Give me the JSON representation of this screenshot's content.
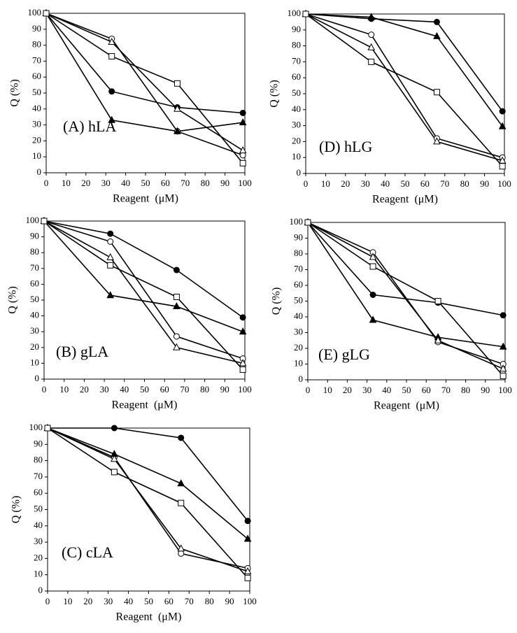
{
  "chart_data": [
    {
      "type": "line",
      "label": "(A) hLA",
      "x_label": "Reagent  (μM)",
      "y_label": "Q (%)",
      "x": [
        0,
        33,
        66,
        99
      ],
      "xlim": [
        0,
        100
      ],
      "ylim": [
        0,
        100
      ],
      "xticks": [
        0,
        10,
        20,
        30,
        40,
        50,
        60,
        70,
        80,
        90,
        100
      ],
      "yticks": [
        0,
        10,
        20,
        30,
        40,
        50,
        60,
        70,
        80,
        90,
        100
      ],
      "series": [
        {
          "marker": "circle",
          "filled": true,
          "color": "#000000",
          "values": [
            100,
            51,
            41,
            37.5
          ]
        },
        {
          "marker": "circle",
          "filled": false,
          "color": "#000000",
          "values": [
            100,
            84,
            26,
            11
          ]
        },
        {
          "marker": "triangle",
          "filled": true,
          "color": "#000000",
          "values": [
            100,
            33,
            26,
            31.5
          ]
        },
        {
          "marker": "triangle",
          "filled": false,
          "color": "#000000",
          "values": [
            100,
            82,
            40,
            14
          ]
        },
        {
          "marker": "square",
          "filled": false,
          "color": "#000000",
          "values": [
            100,
            73,
            56,
            6
          ]
        }
      ]
    },
    {
      "type": "line",
      "label": "(D) hLG",
      "x_label": "Reagent  (μM)",
      "y_label": "Q (%)",
      "x": [
        0,
        33,
        66,
        99
      ],
      "xlim": [
        0,
        100
      ],
      "ylim": [
        0,
        100
      ],
      "xticks": [
        0,
        10,
        20,
        30,
        40,
        50,
        60,
        70,
        80,
        90,
        100
      ],
      "yticks": [
        0,
        10,
        20,
        30,
        40,
        50,
        60,
        70,
        80,
        90,
        100
      ],
      "series": [
        {
          "marker": "circle",
          "filled": true,
          "color": "#000000",
          "values": [
            100,
            97,
            95,
            39
          ]
        },
        {
          "marker": "circle",
          "filled": false,
          "color": "#000000",
          "values": [
            100,
            87,
            22,
            10
          ]
        },
        {
          "marker": "triangle",
          "filled": true,
          "color": "#000000",
          "values": [
            100,
            98,
            86,
            29.5
          ]
        },
        {
          "marker": "triangle",
          "filled": false,
          "color": "#000000",
          "values": [
            100,
            79,
            20,
            8
          ]
        },
        {
          "marker": "square",
          "filled": false,
          "color": "#000000",
          "values": [
            100,
            70,
            51,
            4.5
          ]
        }
      ]
    },
    {
      "type": "line",
      "label": "(B) gLA",
      "x_label": "Reagent  (μM)",
      "y_label": "Q (%)",
      "x": [
        0,
        33,
        66,
        99
      ],
      "xlim": [
        0,
        100
      ],
      "ylim": [
        0,
        100
      ],
      "xticks": [
        0,
        10,
        20,
        30,
        40,
        50,
        60,
        70,
        80,
        90,
        100
      ],
      "yticks": [
        0,
        10,
        20,
        30,
        40,
        50,
        60,
        70,
        80,
        90,
        100
      ],
      "series": [
        {
          "marker": "circle",
          "filled": true,
          "color": "#000000",
          "values": [
            100,
            92,
            69,
            39
          ]
        },
        {
          "marker": "circle",
          "filled": false,
          "color": "#000000",
          "values": [
            100,
            87,
            27,
            13
          ]
        },
        {
          "marker": "triangle",
          "filled": true,
          "color": "#000000",
          "values": [
            100,
            53,
            46,
            30
          ]
        },
        {
          "marker": "triangle",
          "filled": false,
          "color": "#000000",
          "values": [
            100,
            77,
            20,
            10
          ]
        },
        {
          "marker": "square",
          "filled": false,
          "color": "#000000",
          "values": [
            100,
            72,
            52,
            6
          ]
        }
      ]
    },
    {
      "type": "line",
      "label": "(E) gLG",
      "x_label": "Reagent  (μM)",
      "y_label": "Q (%)",
      "x": [
        0,
        33,
        66,
        99
      ],
      "xlim": [
        0,
        100
      ],
      "ylim": [
        0,
        100
      ],
      "xticks": [
        0,
        10,
        20,
        30,
        40,
        50,
        60,
        70,
        80,
        90,
        100
      ],
      "yticks": [
        0,
        10,
        20,
        30,
        40,
        50,
        60,
        70,
        80,
        90,
        100
      ],
      "series": [
        {
          "marker": "circle",
          "filled": true,
          "color": "#000000",
          "values": [
            100,
            54,
            49,
            41
          ]
        },
        {
          "marker": "circle",
          "filled": false,
          "color": "#000000",
          "values": [
            100,
            81,
            24,
            10
          ]
        },
        {
          "marker": "triangle",
          "filled": true,
          "color": "#000000",
          "values": [
            100,
            38,
            27,
            21
          ]
        },
        {
          "marker": "triangle",
          "filled": false,
          "color": "#000000",
          "values": [
            100,
            78,
            25,
            7
          ]
        },
        {
          "marker": "square",
          "filled": false,
          "color": "#000000",
          "values": [
            100,
            72,
            50,
            2.5
          ]
        }
      ]
    },
    {
      "type": "line",
      "label": "(C) cLA",
      "x_label": "Reagent  (μM)",
      "y_label": "Q (%)",
      "x": [
        0,
        33,
        66,
        99
      ],
      "xlim": [
        0,
        100
      ],
      "ylim": [
        0,
        100
      ],
      "xticks": [
        0,
        10,
        20,
        30,
        40,
        50,
        60,
        70,
        80,
        90,
        100
      ],
      "yticks": [
        0,
        10,
        20,
        30,
        40,
        50,
        60,
        70,
        80,
        90,
        100
      ],
      "series": [
        {
          "marker": "circle",
          "filled": true,
          "color": "#000000",
          "values": [
            100,
            100,
            94,
            43
          ]
        },
        {
          "marker": "circle",
          "filled": false,
          "color": "#000000",
          "values": [
            100,
            82,
            23,
            14
          ]
        },
        {
          "marker": "triangle",
          "filled": true,
          "color": "#000000",
          "values": [
            100,
            84,
            66,
            32
          ]
        },
        {
          "marker": "triangle",
          "filled": false,
          "color": "#000000",
          "values": [
            100,
            81,
            26,
            12
          ]
        },
        {
          "marker": "square",
          "filled": false,
          "color": "#000000",
          "values": [
            100,
            73,
            54,
            8
          ]
        }
      ]
    }
  ]
}
